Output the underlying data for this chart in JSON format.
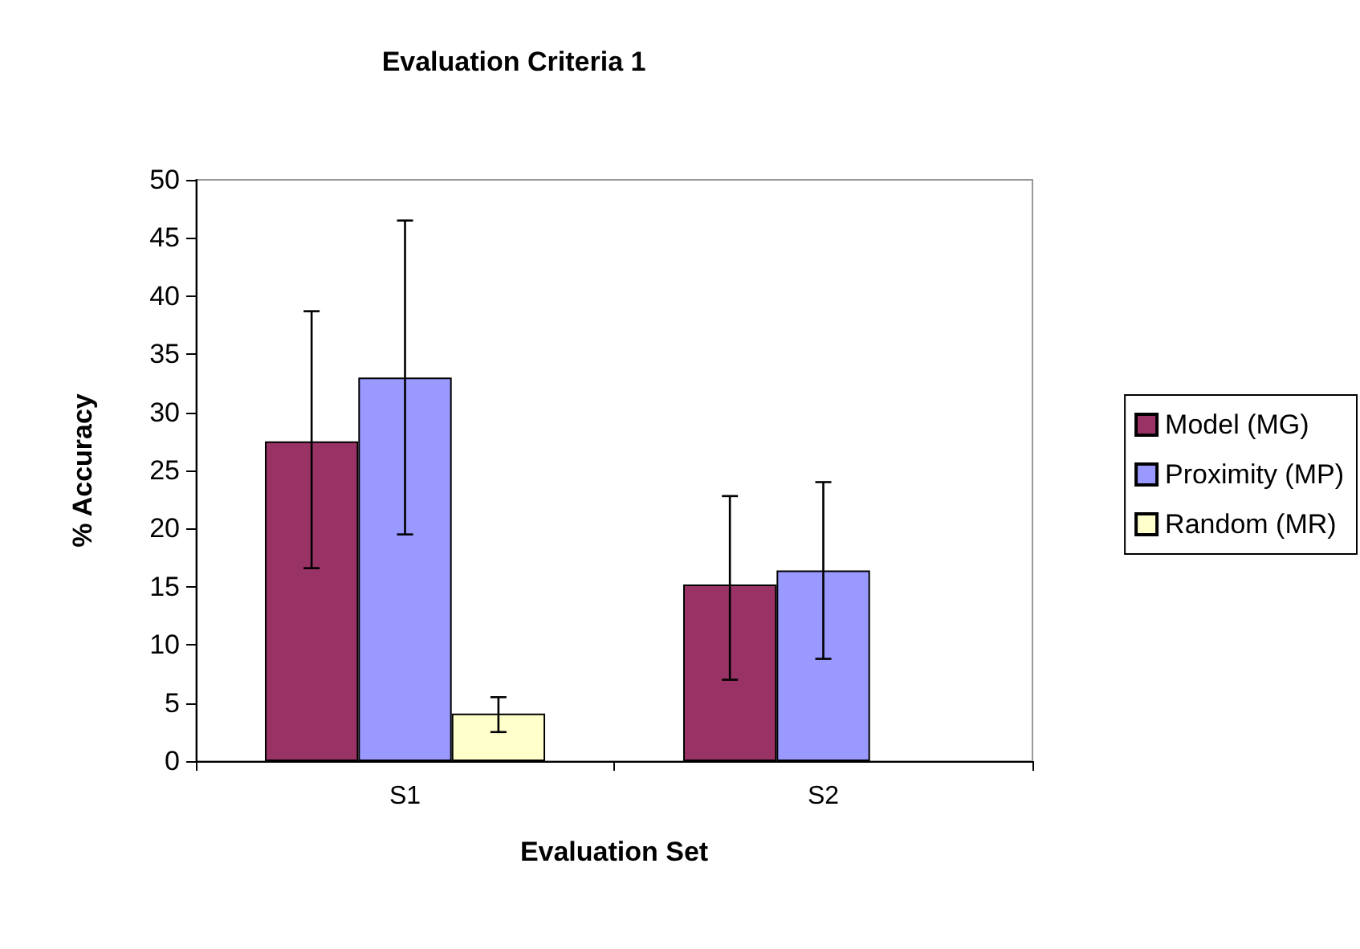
{
  "chart_data": {
    "type": "bar",
    "title": "Evaluation Criteria 1",
    "xlabel": "Evaluation Set",
    "ylabel": "% Accuracy",
    "categories": [
      "S1",
      "S2"
    ],
    "series": [
      {
        "name": "Model (MG)",
        "color": "#993366",
        "values": [
          27.5,
          15.2
        ],
        "errors": [
          [
            16.6,
            38.7
          ],
          [
            7.0,
            22.8
          ]
        ]
      },
      {
        "name": "Proximity (MP)",
        "color": "#9999ff",
        "values": [
          33.0,
          16.4
        ],
        "errors": [
          [
            19.5,
            46.5
          ],
          [
            8.8,
            24.0
          ]
        ]
      },
      {
        "name": "Random (MR)",
        "color": "#ffffcc",
        "values": [
          4.1,
          null
        ],
        "errors": [
          [
            2.5,
            5.5
          ],
          null
        ]
      }
    ],
    "ylim": [
      0,
      50
    ],
    "yticks": [
      0,
      5,
      10,
      15,
      20,
      25,
      30,
      35,
      40,
      45,
      50
    ],
    "grid": false,
    "legend": "right"
  }
}
